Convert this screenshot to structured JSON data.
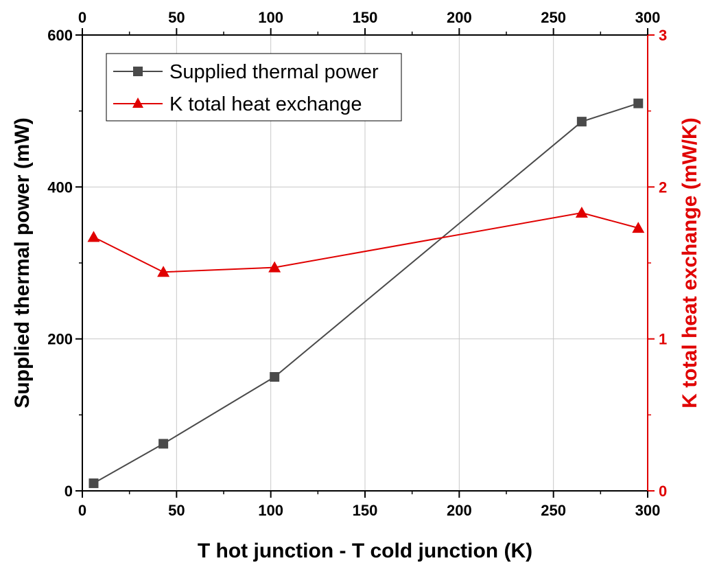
{
  "chart_data": {
    "type": "line",
    "title": "",
    "xlabel": "T hot junction - T cold junction (K)",
    "ylabel_left": "Supplied thermal power (mW)",
    "ylabel_right": "K total heat exchange (mW/K)",
    "xlim": [
      0,
      300
    ],
    "ylim_left": [
      0,
      600
    ],
    "ylim_right": [
      0,
      3
    ],
    "x_ticks": [
      "0",
      "50",
      "100",
      "150",
      "200",
      "250",
      "300"
    ],
    "x_top_ticks": [
      "0",
      "50",
      "100",
      "150",
      "200",
      "250",
      "300"
    ],
    "y_left_ticks": [
      "0",
      "200",
      "400",
      "600"
    ],
    "y_right_ticks": [
      "0",
      "1",
      "2",
      "3"
    ],
    "grid": true,
    "legend_position": "top-left",
    "colors": {
      "black_series": "#4a4a4a",
      "red_series": "#e00000",
      "right_axis": "#e00000"
    },
    "series": [
      {
        "name": "Supplied thermal power",
        "axis": "left",
        "marker": "square",
        "color": "#4a4a4a",
        "x": [
          6,
          43,
          102,
          265,
          295
        ],
        "y": [
          10,
          62,
          150,
          486,
          510
        ]
      },
      {
        "name": "K total heat exchange",
        "axis": "right",
        "marker": "triangle",
        "color": "#e00000",
        "x": [
          6,
          43,
          102,
          265,
          295
        ],
        "y": [
          1.67,
          1.44,
          1.47,
          1.83,
          1.73
        ]
      }
    ]
  }
}
